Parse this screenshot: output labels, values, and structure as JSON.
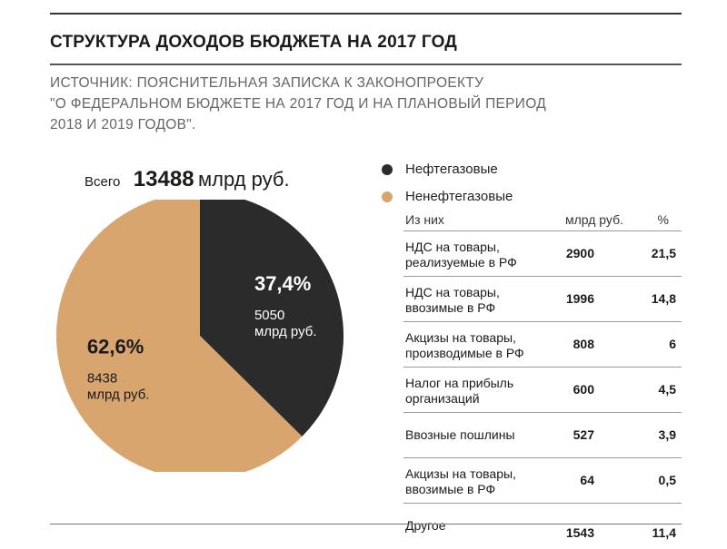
{
  "title": "СТРУКТУРА ДОХОДОВ БЮДЖЕТА НА 2017 ГОД",
  "source_lines": [
    "ИСТОЧНИК: ПОЯСНИТЕЛЬНАЯ ЗАПИСКА К ЗАКОНОПРОЕКТУ",
    "\"О ФЕДЕРАЛЬНОМ БЮДЖЕТЕ НА 2017 ГОД И НА ПЛАНОВЫЙ ПЕРИОД",
    "2018 И 2019 ГОДОВ\"."
  ],
  "total": {
    "label": "Всего",
    "value": "13488",
    "unit": "млрд руб."
  },
  "colors": {
    "oil": "#2b2b2b",
    "nonoil": "#d9a56f"
  },
  "chart_data": [
    {
      "type": "pie",
      "slices": [
        {
          "name": "Нефтегазовые",
          "percent": 37.4,
          "percent_label": "37,4%",
          "value": 5050,
          "value_label": "5050\nмлрд руб."
        },
        {
          "name": "Ненефтегазовые",
          "percent": 62.6,
          "percent_label": "62,6%",
          "value": 8438,
          "value_label": "8438\nмлрд руб."
        }
      ],
      "legend": [
        "Нефтегазовые",
        "Ненефтегазовые"
      ],
      "legend_position": "top-right"
    },
    {
      "type": "table",
      "columns": [
        "Из них",
        "млрд руб.",
        "%"
      ],
      "rows": [
        {
          "name": "НДС на товары, реализуемые в РФ",
          "lines": [
            "НДС на товары,",
            "реализуемые в РФ"
          ],
          "value": "2900",
          "pct": "21,5"
        },
        {
          "name": "НДС на товары, ввозимые в РФ",
          "lines": [
            "НДС на товары,",
            "ввозимые в РФ"
          ],
          "value": "1996",
          "pct": "14,8"
        },
        {
          "name": "Акцизы на товары, производимые в РФ",
          "lines": [
            "Акцизы на товары,",
            "производимые в РФ"
          ],
          "value": "808",
          "pct": "6"
        },
        {
          "name": "Налог на прибыль организаций",
          "lines": [
            "Налог на прибыль",
            "организаций"
          ],
          "value": "600",
          "pct": "4,5"
        },
        {
          "name": "Ввозные пошлины",
          "lines": [
            "Ввозные пошлины"
          ],
          "value": "527",
          "pct": "3,9"
        },
        {
          "name": "Акцизы на товары, ввозимые в РФ",
          "lines": [
            "Акцизы на товары,",
            "ввозимые в РФ"
          ],
          "value": "64",
          "pct": "0,5"
        },
        {
          "name": "Другое",
          "lines": [
            "Другое"
          ],
          "value": "1543",
          "pct": "11,4"
        }
      ]
    }
  ]
}
